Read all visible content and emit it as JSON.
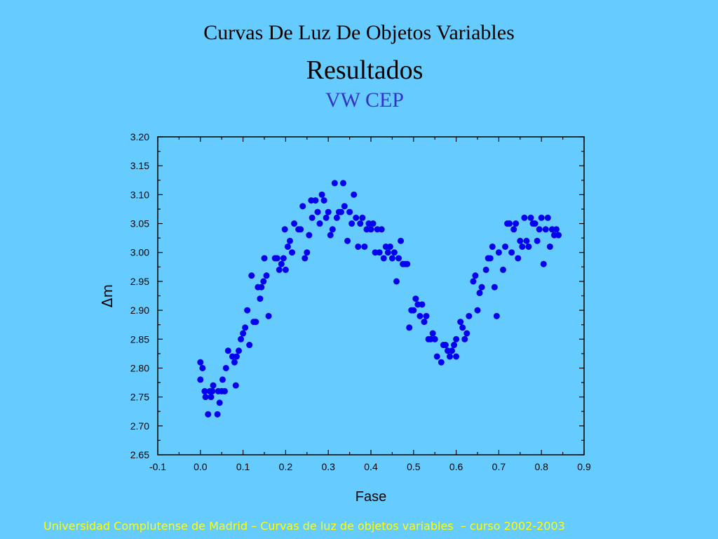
{
  "slide": {
    "title": "Curvas De Luz De Objetos Variables",
    "subtitle": "Resultados",
    "object_name": "VW CEP",
    "footer": "Universidad Complutense de Madrid – Curvas de luz de objetos variables  – curso 2002-2003"
  },
  "colors": {
    "background": "#66ccff",
    "points": "#0000ee",
    "object_name": "#3333cc",
    "footer": "#ffff00"
  },
  "chart_data": {
    "type": "scatter",
    "xlabel": "Fase",
    "ylabel": "Δm",
    "xlim": [
      -0.1,
      0.9
    ],
    "ylim": [
      2.65,
      3.2
    ],
    "xticks": [
      "-0.1",
      "0.0",
      "0.1",
      "0.2",
      "0.3",
      "0.4",
      "0.5",
      "0.6",
      "0.7",
      "0.8",
      "0.9"
    ],
    "yticks": [
      "2.65",
      "2.70",
      "2.75",
      "2.80",
      "2.85",
      "2.90",
      "2.95",
      "3.00",
      "3.05",
      "3.10",
      "3.15",
      "3.20"
    ],
    "grid": false,
    "points": [
      [
        0.0,
        2.81
      ],
      [
        0.0,
        2.78
      ],
      [
        0.005,
        2.8
      ],
      [
        0.01,
        2.76
      ],
      [
        0.012,
        2.75
      ],
      [
        0.018,
        2.72
      ],
      [
        0.022,
        2.76
      ],
      [
        0.025,
        2.75
      ],
      [
        0.028,
        2.76
      ],
      [
        0.03,
        2.77
      ],
      [
        0.04,
        2.72
      ],
      [
        0.042,
        2.76
      ],
      [
        0.045,
        2.74
      ],
      [
        0.05,
        2.76
      ],
      [
        0.052,
        2.78
      ],
      [
        0.057,
        2.76
      ],
      [
        0.06,
        2.8
      ],
      [
        0.065,
        2.83
      ],
      [
        0.075,
        2.82
      ],
      [
        0.08,
        2.81
      ],
      [
        0.083,
        2.77
      ],
      [
        0.085,
        2.82
      ],
      [
        0.09,
        2.83
      ],
      [
        0.095,
        2.85
      ],
      [
        0.1,
        2.86
      ],
      [
        0.105,
        2.87
      ],
      [
        0.11,
        2.9
      ],
      [
        0.115,
        2.84
      ],
      [
        0.12,
        2.96
      ],
      [
        0.125,
        2.88
      ],
      [
        0.13,
        2.88
      ],
      [
        0.135,
        2.94
      ],
      [
        0.14,
        2.92
      ],
      [
        0.143,
        2.94
      ],
      [
        0.148,
        2.95
      ],
      [
        0.15,
        2.99
      ],
      [
        0.155,
        2.96
      ],
      [
        0.16,
        2.89
      ],
      [
        0.175,
        2.99
      ],
      [
        0.18,
        2.99
      ],
      [
        0.185,
        2.97
      ],
      [
        0.19,
        2.98
      ],
      [
        0.195,
        2.99
      ],
      [
        0.198,
        3.04
      ],
      [
        0.2,
        2.97
      ],
      [
        0.205,
        3.01
      ],
      [
        0.21,
        3.02
      ],
      [
        0.215,
        3.0
      ],
      [
        0.22,
        3.05
      ],
      [
        0.23,
        3.04
      ],
      [
        0.235,
        3.04
      ],
      [
        0.24,
        3.08
      ],
      [
        0.245,
        2.99
      ],
      [
        0.25,
        3.0
      ],
      [
        0.255,
        3.03
      ],
      [
        0.26,
        3.09
      ],
      [
        0.262,
        3.06
      ],
      [
        0.27,
        3.09
      ],
      [
        0.275,
        3.07
      ],
      [
        0.28,
        3.05
      ],
      [
        0.285,
        3.1
      ],
      [
        0.29,
        3.09
      ],
      [
        0.295,
        3.06
      ],
      [
        0.3,
        3.07
      ],
      [
        0.305,
        3.03
      ],
      [
        0.31,
        3.04
      ],
      [
        0.315,
        3.12
      ],
      [
        0.32,
        3.06
      ],
      [
        0.325,
        3.07
      ],
      [
        0.33,
        3.07
      ],
      [
        0.335,
        3.12
      ],
      [
        0.338,
        3.08
      ],
      [
        0.345,
        3.02
      ],
      [
        0.35,
        3.07
      ],
      [
        0.355,
        3.05
      ],
      [
        0.36,
        3.1
      ],
      [
        0.365,
        3.06
      ],
      [
        0.37,
        3.01
      ],
      [
        0.375,
        3.05
      ],
      [
        0.38,
        3.06
      ],
      [
        0.385,
        3.01
      ],
      [
        0.39,
        3.04
      ],
      [
        0.395,
        3.05
      ],
      [
        0.4,
        3.04
      ],
      [
        0.405,
        3.05
      ],
      [
        0.41,
        3.0
      ],
      [
        0.415,
        3.04
      ],
      [
        0.42,
        3.0
      ],
      [
        0.425,
        3.04
      ],
      [
        0.43,
        2.99
      ],
      [
        0.435,
        3.01
      ],
      [
        0.44,
        3.0
      ],
      [
        0.445,
        3.01
      ],
      [
        0.45,
        2.99
      ],
      [
        0.455,
        3.0
      ],
      [
        0.46,
        2.95
      ],
      [
        0.465,
        2.99
      ],
      [
        0.47,
        3.02
      ],
      [
        0.475,
        2.98
      ],
      [
        0.48,
        2.98
      ],
      [
        0.485,
        2.98
      ],
      [
        0.49,
        2.87
      ],
      [
        0.495,
        2.9
      ],
      [
        0.5,
        2.9
      ],
      [
        0.505,
        2.92
      ],
      [
        0.51,
        2.91
      ],
      [
        0.515,
        2.89
      ],
      [
        0.52,
        2.91
      ],
      [
        0.525,
        2.88
      ],
      [
        0.53,
        2.89
      ],
      [
        0.535,
        2.85
      ],
      [
        0.54,
        2.85
      ],
      [
        0.545,
        2.86
      ],
      [
        0.55,
        2.85
      ],
      [
        0.555,
        2.82
      ],
      [
        0.565,
        2.81
      ],
      [
        0.57,
        2.84
      ],
      [
        0.575,
        2.84
      ],
      [
        0.58,
        2.83
      ],
      [
        0.585,
        2.82
      ],
      [
        0.59,
        2.83
      ],
      [
        0.595,
        2.84
      ],
      [
        0.6,
        2.82
      ],
      [
        0.6,
        2.85
      ],
      [
        0.61,
        2.88
      ],
      [
        0.615,
        2.87
      ],
      [
        0.62,
        2.85
      ],
      [
        0.625,
        2.86
      ],
      [
        0.63,
        2.89
      ],
      [
        0.64,
        2.95
      ],
      [
        0.645,
        2.96
      ],
      [
        0.65,
        2.9
      ],
      [
        0.655,
        2.93
      ],
      [
        0.66,
        2.94
      ],
      [
        0.67,
        2.97
      ],
      [
        0.675,
        2.99
      ],
      [
        0.68,
        2.99
      ],
      [
        0.685,
        3.01
      ],
      [
        0.69,
        2.94
      ],
      [
        0.695,
        2.89
      ],
      [
        0.7,
        3.0
      ],
      [
        0.71,
        2.97
      ],
      [
        0.715,
        3.01
      ],
      [
        0.72,
        3.05
      ],
      [
        0.725,
        3.05
      ],
      [
        0.73,
        3.0
      ],
      [
        0.735,
        3.04
      ],
      [
        0.74,
        3.05
      ],
      [
        0.745,
        2.99
      ],
      [
        0.75,
        3.02
      ],
      [
        0.755,
        3.01
      ],
      [
        0.76,
        3.06
      ],
      [
        0.765,
        3.02
      ],
      [
        0.77,
        3.01
      ],
      [
        0.775,
        3.06
      ],
      [
        0.78,
        3.05
      ],
      [
        0.785,
        3.05
      ],
      [
        0.79,
        3.02
      ],
      [
        0.795,
        3.04
      ],
      [
        0.8,
        3.06
      ],
      [
        0.805,
        2.98
      ],
      [
        0.81,
        3.04
      ],
      [
        0.815,
        3.06
      ],
      [
        0.82,
        3.01
      ],
      [
        0.825,
        3.04
      ],
      [
        0.83,
        3.03
      ],
      [
        0.835,
        3.04
      ],
      [
        0.84,
        3.03
      ]
    ]
  }
}
